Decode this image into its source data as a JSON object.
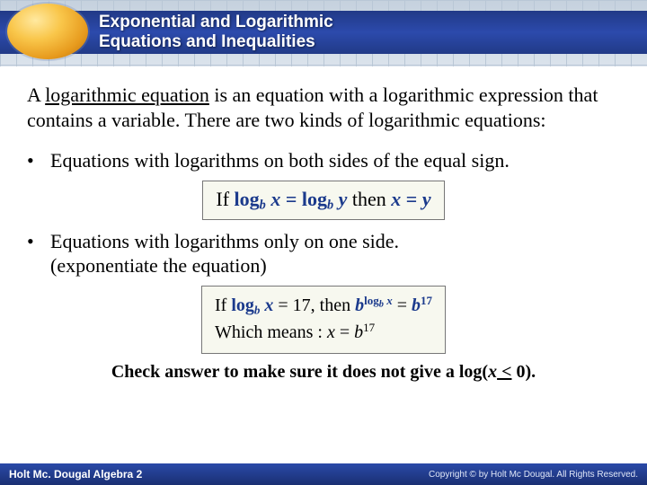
{
  "header": {
    "title_l1": "Exponential and Logarithmic",
    "title_l2": "Equations and Inequalities"
  },
  "intro": {
    "pre": "A ",
    "term": "logarithmic equation",
    "post": " is an equation with a logarithmic expression that contains a variable. There are two kinds of logarithmic equations:"
  },
  "bullets": {
    "b1": "Equations with logarithms on both sides of the equal sign.",
    "b2_l1": "Equations with logarithms only on one side.",
    "b2_l2": "(exponentiate the equation)"
  },
  "formula1": {
    "if": "If ",
    "log1_pre": "log",
    "b": "b",
    "x": " x",
    "eq": " = ",
    "log2_pre": "log",
    "y": " y",
    "then": " then ",
    "rhs_x": "x",
    "rhs_eq": " = ",
    "rhs_y": "y"
  },
  "formula2": {
    "line1_if": "If ",
    "line1_log": "log",
    "line1_b": "b",
    "line1_x": " x",
    "line1_eq": " = 17, then ",
    "line1_base": "b",
    "line1_exp_log": "log",
    "line1_exp_b": "b",
    "line1_exp_x": " x",
    "line1_eq2": " = ",
    "line1_b2": "b",
    "line1_17": "17",
    "line2_pre": "Which means : ",
    "line2_x": "x",
    "line2_eq": " = ",
    "line2_b": "b",
    "line2_17": "17"
  },
  "check": {
    "pre": "Check answer to make sure it does not give a log(",
    "x": "x",
    "op": " <",
    "post": " 0)."
  },
  "footer": {
    "left": "Holt Mc. Dougal Algebra 2",
    "right": "Copyright © by Holt Mc Dougal. All Rights Reserved."
  },
  "colors": {
    "navy": "#1b3a8c",
    "header_band": "#2c4aac",
    "box_bg": "#f7f8ef"
  }
}
